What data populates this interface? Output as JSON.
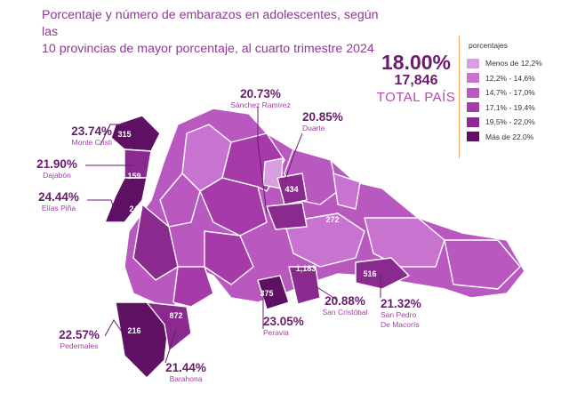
{
  "title_line1": "Porcentaje y número de embarazos en adolescentes, según  las",
  "title_line2": "10 provincias de mayor porcentaje, al cuarto trimestre 2024",
  "total": {
    "percent": "18.00%",
    "count": "17,846",
    "label": "TOTAL PAÍS"
  },
  "legend": {
    "title": "porcentajes",
    "items": [
      {
        "label": "Menos de 12,2%",
        "color": "#d79ee0"
      },
      {
        "label": "12,2% - 14,6%",
        "color": "#c773cf"
      },
      {
        "label": "14,7% - 17,0%",
        "color": "#b959c0"
      },
      {
        "label": "17,1% - 19,4%",
        "color": "#a63aa8"
      },
      {
        "label": "19,5% - 22,0%",
        "color": "#8a2a8f"
      },
      {
        "label": "Más de 22.0%",
        "color": "#5e1163"
      }
    ]
  },
  "provinces": [
    {
      "name": "Monte Cristi",
      "percent": "23.74%",
      "count": "315"
    },
    {
      "name": "Dajabón",
      "percent": "21.90%",
      "count": "159"
    },
    {
      "name": "Elías Piña",
      "percent": "24.44%",
      "count": "249"
    },
    {
      "name": "Sánchez Ramírez",
      "percent": "20.73%",
      "count": "272"
    },
    {
      "name": "Duarte",
      "percent": "20.85%",
      "count": "434"
    },
    {
      "name": "Pedernales",
      "percent": "22.57%",
      "count": "216"
    },
    {
      "name": "Barahona",
      "percent": "21.44%",
      "count": "872"
    },
    {
      "name": "Peravia",
      "percent": "23.05%",
      "count": "375"
    },
    {
      "name": "San Cristóbal",
      "percent": "20.88%",
      "count": "1,183"
    },
    {
      "name": "San Pedro\nDe Macorís",
      "percent": "21.32%",
      "count": "516"
    }
  ]
}
